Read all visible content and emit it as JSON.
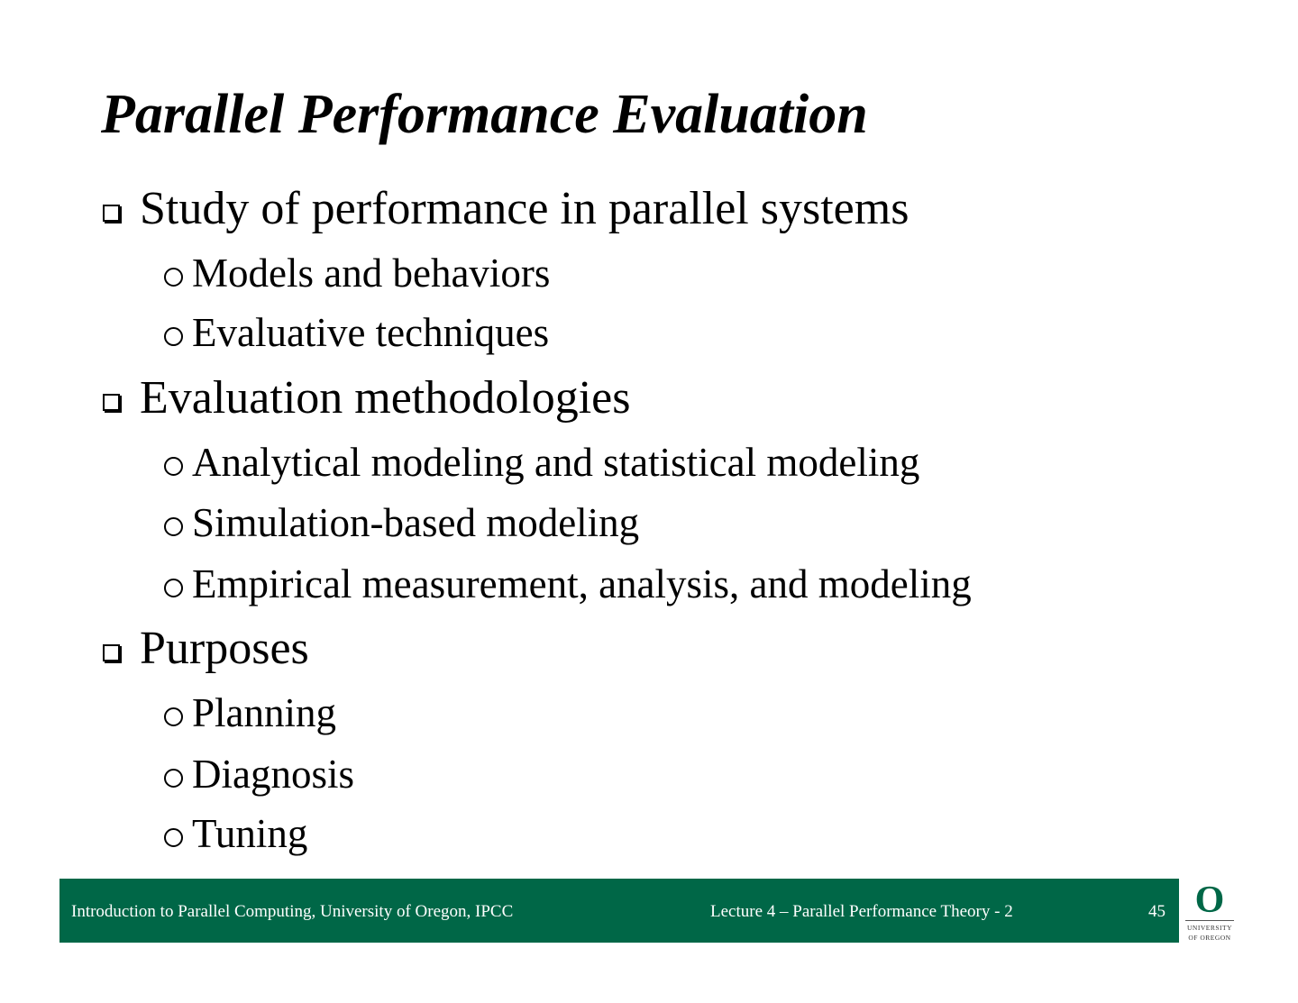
{
  "title": "Parallel Performance Evaluation",
  "bullets": [
    {
      "text": "Study of performance in parallel systems",
      "sub": [
        "Models and behaviors",
        "Evaluative techniques"
      ]
    },
    {
      "text": "Evaluation methodologies",
      "sub": [
        "Analytical modeling and statistical modeling",
        "Simulation-based modeling",
        "Empirical measurement, analysis, and modeling"
      ]
    },
    {
      "text": "Purposes",
      "sub": [
        "Planning",
        "Diagnosis",
        "Tuning"
      ]
    }
  ],
  "footer": {
    "left": "Introduction to Parallel Computing, University of Oregon, IPCC",
    "center": "Lecture 4 – Parallel Performance Theory - 2",
    "page": "45",
    "color": "#006747"
  },
  "logo": {
    "mark": "O",
    "line1": "UNIVERSITY",
    "line2": "OF OREGON"
  }
}
